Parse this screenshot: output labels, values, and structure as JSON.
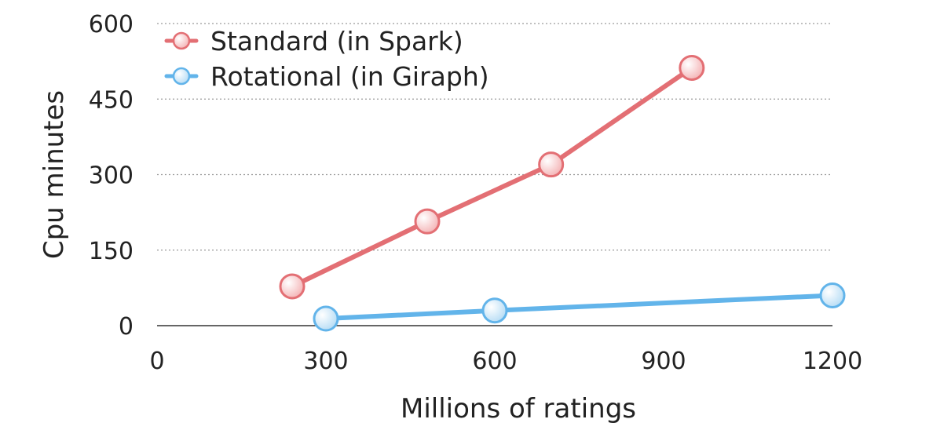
{
  "chart_data": {
    "type": "line",
    "title": "",
    "xlabel": "Millions of ratings",
    "ylabel": "Cpu minutes",
    "xlim": [
      0,
      1200
    ],
    "ylim": [
      0,
      600
    ],
    "x_ticks": [
      "0",
      "300",
      "600",
      "900",
      "1200"
    ],
    "y_ticks": [
      "0",
      "150",
      "300",
      "450",
      "600"
    ],
    "grid": "horizontal dotted",
    "legend_position": "top-left",
    "series": [
      {
        "name": "Standard (in Spark)",
        "color": "#e36f74",
        "marker_fill": "#f4b3b5",
        "points": [
          {
            "x": 240,
            "y": 78
          },
          {
            "x": 480,
            "y": 207
          },
          {
            "x": 700,
            "y": 320
          },
          {
            "x": 950,
            "y": 512
          }
        ]
      },
      {
        "name": "Rotational (in Giraph)",
        "color": "#62b4ea",
        "marker_fill": "#b6dcf5",
        "points": [
          {
            "x": 300,
            "y": 14
          },
          {
            "x": 600,
            "y": 30
          },
          {
            "x": 1200,
            "y": 60
          }
        ]
      }
    ]
  }
}
